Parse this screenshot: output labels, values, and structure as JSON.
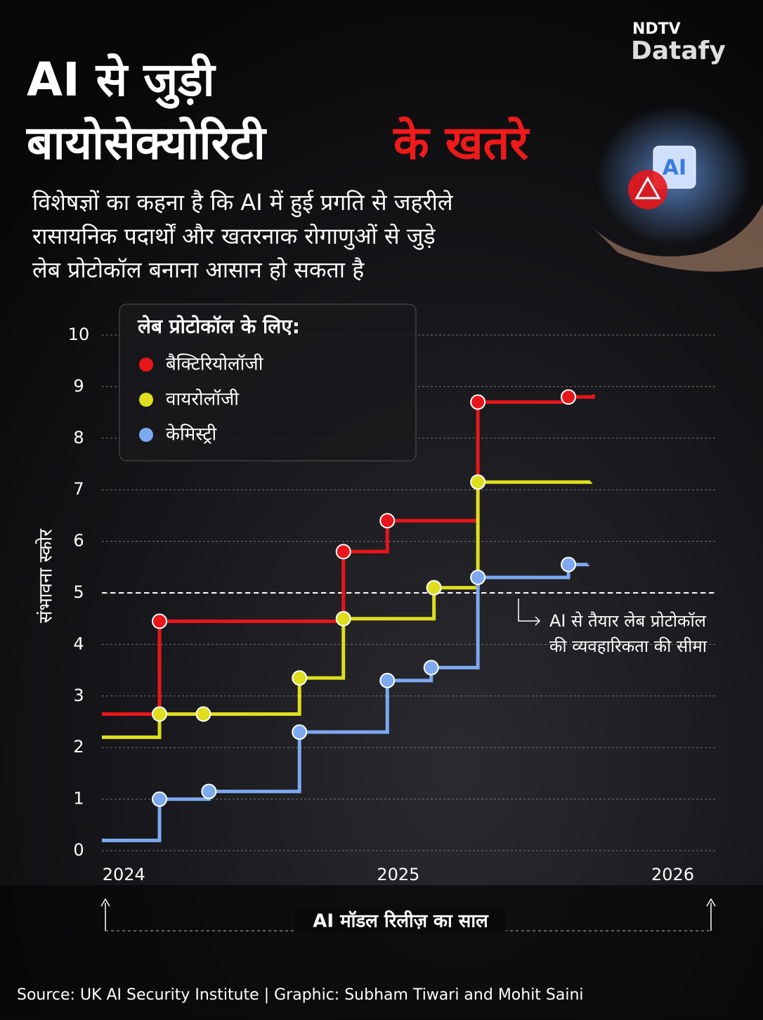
{
  "brand": {
    "top": "NDTV",
    "bottom": "Datafy"
  },
  "header": {
    "title_lines": [
      "AI से जुड़ी",
      "बायोसेक्योरिटी"
    ],
    "title_highlight": "के खतरे",
    "subtitle_lines": [
      "विशेषज्ञों का कहना है कि AI में हुई प्रगति से जहरीले",
      "रासायनिक पदार्थों और खतरनाक रोगाणुओं से जुड़े",
      "लेब प्रोटोकॉल बनाना आसान हो सकता है"
    ],
    "illustration_text": "AI"
  },
  "chart_data": {
    "type": "step-line",
    "legend_title": "लेब प्रोटोकॉल के लिए:",
    "y_label": "संभावना स्कोर",
    "x_label": "AI मॉडल रिलीज़ का साल",
    "xlim": [
      2023.92,
      2026.16
    ],
    "xticks": [
      2024,
      2025,
      2026
    ],
    "ylim": [
      0,
      10
    ],
    "yticks": [
      0,
      1,
      2,
      3,
      4,
      5,
      6,
      7,
      8,
      9,
      10
    ],
    "grid": true,
    "threshold": {
      "value": 5,
      "label_lines": [
        "AI से तैयार लेब प्रोटोकॉल",
        "की व्यवहारिकता की सीमा"
      ]
    },
    "series": [
      {
        "name": "बैक्टिरियोलॉजी",
        "color": "#e8161b",
        "x": [
          2023.92,
          2024.13,
          2024.8,
          2024.96,
          2025.29,
          2025.62,
          2025.71
        ],
        "values": [
          2.65,
          4.45,
          5.8,
          6.4,
          8.7,
          8.8,
          8.85
        ]
      },
      {
        "name": "वायरोलॉजी",
        "color": "#dede1e",
        "x": [
          2023.92,
          2024.13,
          2024.29,
          2024.64,
          2024.8,
          2025.13,
          2025.29,
          2025.7
        ],
        "values": [
          2.2,
          2.65,
          2.65,
          3.35,
          4.5,
          5.1,
          7.15,
          7.15
        ]
      },
      {
        "name": "केमिस्ट्री",
        "color": "#7ca9f0",
        "x": [
          2023.92,
          2024.13,
          2024.31,
          2024.64,
          2024.96,
          2025.12,
          2025.29,
          2025.62,
          2025.69
        ],
        "values": [
          0.2,
          1.0,
          1.15,
          2.3,
          3.3,
          3.55,
          5.3,
          5.55,
          5.55
        ]
      }
    ]
  },
  "footer": {
    "source": "Source: UK AI Security Institute | Graphic: Subham Tiwari and Mohit Saini"
  }
}
